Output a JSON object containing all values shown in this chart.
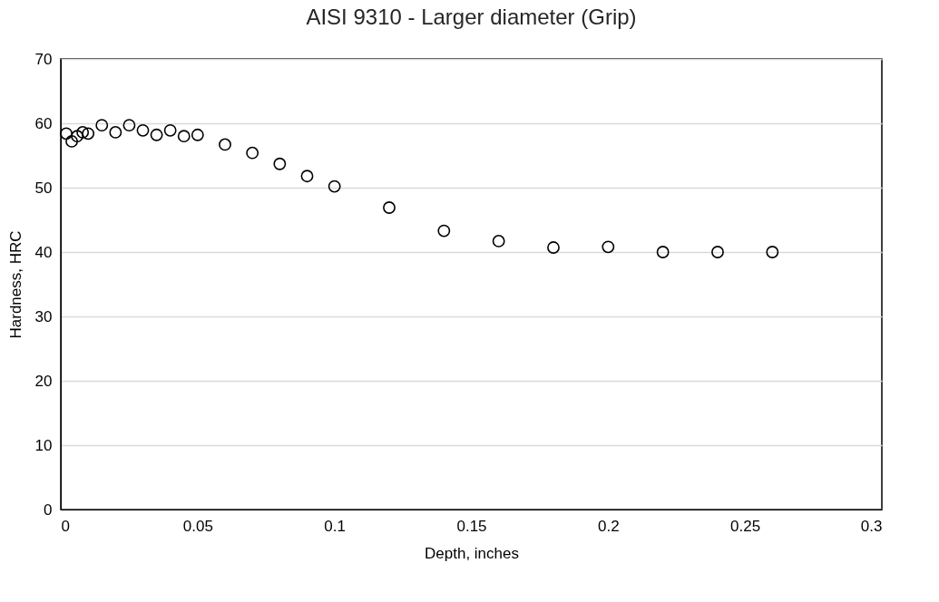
{
  "chart_data": {
    "type": "scatter",
    "title": "AISI 9310 - Larger diameter (Grip)",
    "xlabel": "Depth, inches",
    "ylabel": "Hardness, HRC",
    "x": [
      0.002,
      0.004,
      0.006,
      0.008,
      0.01,
      0.015,
      0.02,
      0.025,
      0.03,
      0.035,
      0.04,
      0.045,
      0.05,
      0.06,
      0.07,
      0.08,
      0.09,
      0.1,
      0.12,
      0.14,
      0.16,
      0.18,
      0.2,
      0.22,
      0.24,
      0.26
    ],
    "series": [
      {
        "color": "#000000",
        "values": [
          58.4,
          57.2,
          58.0,
          58.6,
          58.4,
          59.7,
          58.6,
          59.7,
          58.9,
          58.2,
          58.9,
          58.0,
          58.2,
          56.7,
          55.4,
          53.7,
          51.8,
          50.2,
          46.9,
          43.3,
          41.7,
          40.7,
          40.8,
          40.0,
          40.0,
          40.0
        ]
      }
    ],
    "xlim": [
      0,
      0.3
    ],
    "xticks": [
      0,
      0.05,
      0.1,
      0.15,
      0.2,
      0.25,
      0.3
    ],
    "ylim": [
      0,
      70
    ],
    "yticks": [
      0,
      10,
      20,
      30,
      40,
      50,
      60,
      70
    ],
    "grid": "y",
    "marker": "circle",
    "legend": false
  }
}
